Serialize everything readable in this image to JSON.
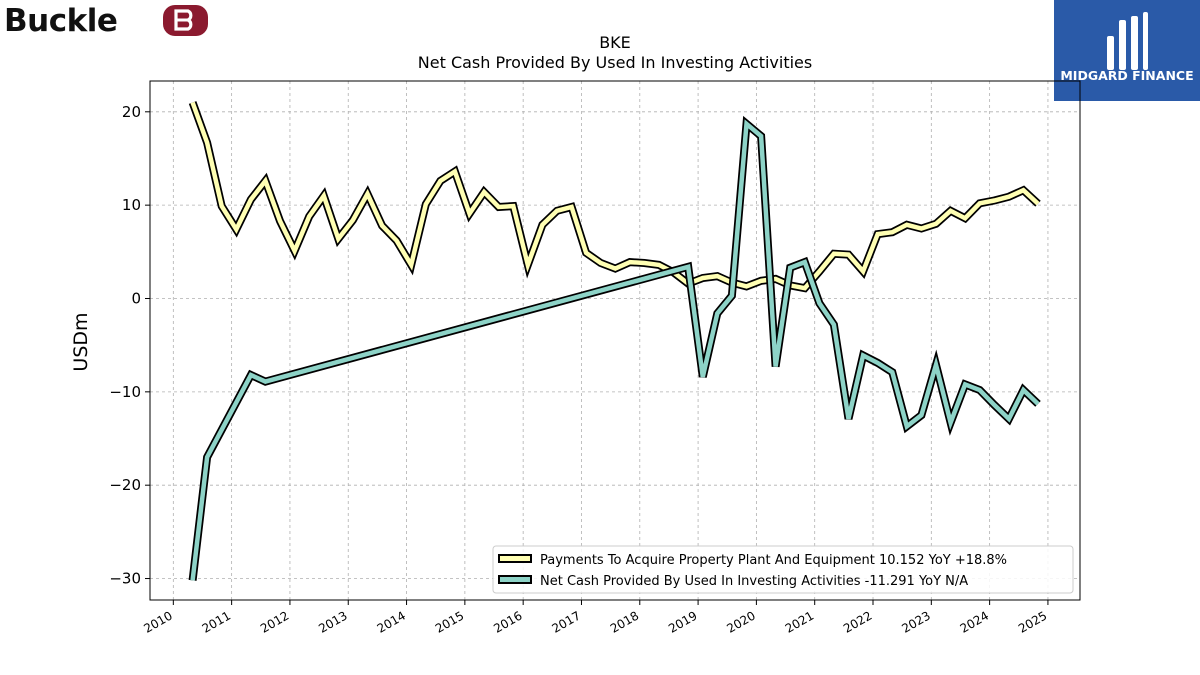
{
  "logo": {
    "company_wordmark": "Buckle",
    "partner_name": "MIDGARD FINANCE"
  },
  "colors": {
    "equipment": "#ffffb3",
    "investing": "#8dd3c7",
    "outline": "#000000",
    "grid": "#b0b0b0",
    "partner_bg": "#2a5aa8",
    "brand_mark": "#8b1a2f"
  },
  "chart_data": {
    "type": "line",
    "title": "BKE",
    "subtitle": "Net Cash Provided By Used In Investing Activities",
    "xlabel": "",
    "ylabel": "USDm",
    "xlim": [
      2009.6,
      2025.55
    ],
    "ylim": [
      -32.3,
      23.3
    ],
    "x_ticks": [
      "2010",
      "2011",
      "2012",
      "2013",
      "2014",
      "2015",
      "2016",
      "2017",
      "2018",
      "2019",
      "2020",
      "2021",
      "2022",
      "2023",
      "2024",
      "2025"
    ],
    "y_ticks": [
      {
        "value": 20,
        "label": "20"
      },
      {
        "value": 10,
        "label": "10"
      },
      {
        "value": 0,
        "label": "0"
      },
      {
        "value": -10,
        "label": "−10"
      },
      {
        "value": -20,
        "label": "−20"
      },
      {
        "value": -30,
        "label": "−30"
      }
    ],
    "grid": true,
    "legend_position": "lower-right",
    "series": [
      {
        "name": "Payments To Acquire Property Plant And Equipment",
        "legend_label": "Payments To Acquire Property Plant And Equipment  10.152 YoY +18.8%",
        "color": "#ffffb3",
        "points": [
          [
            2010.33,
            21.0
          ],
          [
            2010.58,
            16.7
          ],
          [
            2010.83,
            9.9
          ],
          [
            2011.08,
            7.4
          ],
          [
            2011.33,
            10.6
          ],
          [
            2011.58,
            12.6
          ],
          [
            2011.83,
            8.3
          ],
          [
            2012.08,
            5.1
          ],
          [
            2012.33,
            8.8
          ],
          [
            2012.58,
            11.0
          ],
          [
            2012.83,
            6.4
          ],
          [
            2013.08,
            8.4
          ],
          [
            2013.33,
            11.2
          ],
          [
            2013.58,
            7.8
          ],
          [
            2013.83,
            6.2
          ],
          [
            2014.08,
            3.6
          ],
          [
            2014.33,
            10.1
          ],
          [
            2014.58,
            12.6
          ],
          [
            2014.83,
            13.6
          ],
          [
            2015.08,
            9.1
          ],
          [
            2015.33,
            11.4
          ],
          [
            2015.58,
            9.8
          ],
          [
            2015.83,
            9.9
          ],
          [
            2016.08,
            3.6
          ],
          [
            2016.33,
            7.9
          ],
          [
            2016.58,
            9.4
          ],
          [
            2016.83,
            9.8
          ],
          [
            2017.08,
            4.9
          ],
          [
            2017.33,
            3.8
          ],
          [
            2017.58,
            3.2
          ],
          [
            2017.83,
            3.9
          ],
          [
            2018.08,
            3.8
          ],
          [
            2018.33,
            3.6
          ],
          [
            2018.58,
            2.8
          ],
          [
            2018.83,
            1.6
          ],
          [
            2019.08,
            2.2
          ],
          [
            2019.33,
            2.4
          ],
          [
            2019.58,
            1.7
          ],
          [
            2019.83,
            1.3
          ],
          [
            2020.08,
            1.9
          ],
          [
            2020.33,
            2.1
          ],
          [
            2020.58,
            1.4
          ],
          [
            2020.83,
            1.1
          ],
          [
            2021.08,
            2.9
          ],
          [
            2021.33,
            4.8
          ],
          [
            2021.58,
            4.7
          ],
          [
            2021.83,
            2.9
          ],
          [
            2022.08,
            6.9
          ],
          [
            2022.33,
            7.1
          ],
          [
            2022.58,
            7.9
          ],
          [
            2022.83,
            7.5
          ],
          [
            2023.08,
            8.0
          ],
          [
            2023.33,
            9.4
          ],
          [
            2023.58,
            8.6
          ],
          [
            2023.83,
            10.2
          ],
          [
            2024.08,
            10.5
          ],
          [
            2024.33,
            10.9
          ],
          [
            2024.58,
            11.6
          ],
          [
            2024.83,
            10.152
          ]
        ]
      },
      {
        "name": "Net Cash Provided By Used In Investing Activities",
        "legend_label": "Net Cash Provided By Used In Investing Activities  -11.291 YoY N/A",
        "color": "#8dd3c7",
        "points": [
          [
            2010.33,
            -30.2
          ],
          [
            2010.58,
            -17.0
          ],
          [
            2011.33,
            -8.2
          ],
          [
            2011.58,
            -8.9
          ],
          [
            2018.83,
            3.4
          ],
          [
            2019.08,
            -8.4
          ],
          [
            2019.33,
            -1.6
          ],
          [
            2019.58,
            0.3
          ],
          [
            2019.83,
            18.7
          ],
          [
            2020.08,
            17.4
          ],
          [
            2020.33,
            -7.3
          ],
          [
            2020.58,
            3.3
          ],
          [
            2020.83,
            3.9
          ],
          [
            2021.08,
            -0.5
          ],
          [
            2021.33,
            -2.8
          ],
          [
            2021.58,
            -12.9
          ],
          [
            2021.83,
            -6.1
          ],
          [
            2022.08,
            -6.9
          ],
          [
            2022.33,
            -7.9
          ],
          [
            2022.58,
            -13.7
          ],
          [
            2022.83,
            -12.5
          ],
          [
            2023.08,
            -7.1
          ],
          [
            2023.33,
            -13.3
          ],
          [
            2023.58,
            -9.2
          ],
          [
            2023.83,
            -9.8
          ],
          [
            2024.08,
            -11.4
          ],
          [
            2024.33,
            -12.9
          ],
          [
            2024.58,
            -9.8
          ],
          [
            2024.83,
            -11.291
          ]
        ]
      }
    ]
  }
}
